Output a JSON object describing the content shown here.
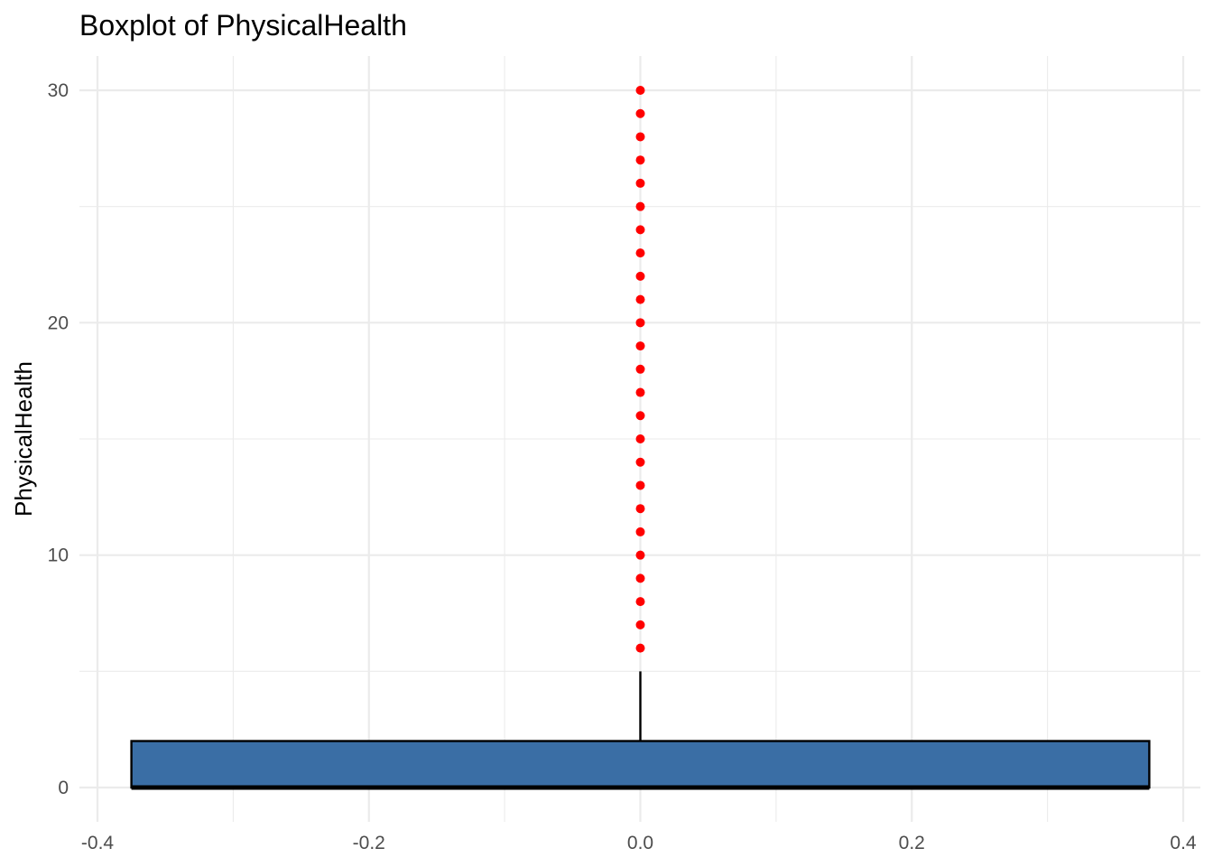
{
  "chart_data": {
    "type": "box",
    "title": "Boxplot of PhysicalHealth",
    "xlabel": "",
    "ylabel": "PhysicalHealth",
    "xlim": [
      -0.4,
      0.4
    ],
    "ylim": [
      0,
      30
    ],
    "x_ticks": [
      "-0.4",
      "-0.2",
      "0.0",
      "0.2",
      "0.4"
    ],
    "y_ticks": [
      "0",
      "10",
      "20",
      "30"
    ],
    "grid": true,
    "box": {
      "x_center": 0.0,
      "x_min": -0.375,
      "x_max": 0.375,
      "min": 0,
      "q1": 0,
      "median": 0,
      "q3": 2,
      "whisker_low": 0,
      "whisker_high": 5,
      "fill": "#3A6EA5",
      "outline": "#000000"
    },
    "outliers": {
      "x": 0.0,
      "values": [
        6,
        7,
        8,
        9,
        10,
        11,
        12,
        13,
        14,
        15,
        16,
        17,
        18,
        19,
        20,
        21,
        22,
        23,
        24,
        25,
        26,
        27,
        28,
        29,
        30
      ],
      "color": "#FF0000"
    }
  }
}
